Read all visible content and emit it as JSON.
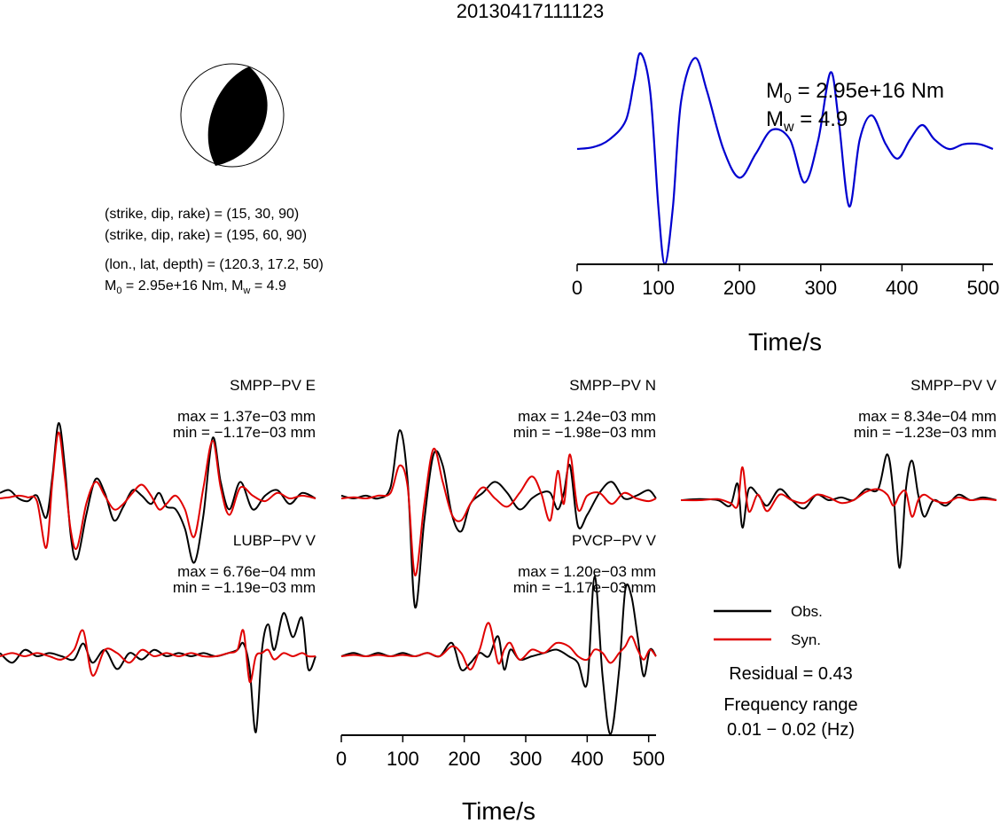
{
  "page": {
    "title": "20130417111123",
    "info_lines": {
      "plane1": "(strike, dip, rake) = (15, 30, 90)",
      "plane2": "(strike, dip, rake) = (195, 60, 90)",
      "location": "(lon., lat, depth) = (120.3, 17.2, 50)",
      "moment_prefix": "M",
      "moment_sub": "0",
      "moment_value": " = 2.95e+16 Nm, M",
      "mw_sub": "w",
      "mw_value": " = 4.9"
    },
    "stf_labels": {
      "m0_prefix": "M",
      "m0_sub": "0",
      "m0_value": " = 2.95e+16 Nm",
      "mw_prefix": "M",
      "mw_sub": "w",
      "mw_value": " = 4.9"
    },
    "legend": {
      "obs_label": "Obs.",
      "syn_label": "Syn.",
      "obs_color": "#000000",
      "syn_color": "#e00000"
    },
    "residual_text": "Residual = 0.43",
    "frequency_title": "Frequency range",
    "frequency_value": "0.01 − 0.02 (Hz)"
  },
  "chart_data": [
    {
      "type": "beachball",
      "strike": 15,
      "dip": 30,
      "rake": 90
    },
    {
      "type": "line",
      "name": "source-time-function",
      "color": "#0000d0",
      "xlabel": "Time/s",
      "xlim": [
        0,
        512
      ],
      "xticks": [
        0,
        100,
        200,
        300,
        400,
        500
      ],
      "x": [
        0,
        20,
        40,
        60,
        70,
        78,
        90,
        100,
        108,
        118,
        128,
        145,
        160,
        180,
        200,
        220,
        240,
        262,
        280,
        297,
        312,
        322,
        335,
        348,
        363,
        380,
        395,
        410,
        425,
        440,
        458,
        476,
        495,
        512
      ],
      "y": [
        0.0,
        0.02,
        0.1,
        0.3,
        0.7,
        1.0,
        0.6,
        -0.6,
        -1.2,
        -0.6,
        0.5,
        0.95,
        0.6,
        0.0,
        -0.3,
        -0.05,
        0.2,
        0.1,
        -0.35,
        0.1,
        0.8,
        0.3,
        -0.6,
        0.1,
        0.35,
        0.05,
        -0.1,
        0.1,
        0.25,
        0.1,
        0.0,
        0.05,
        0.05,
        0.0
      ]
    },
    {
      "type": "line",
      "name": "SMPP-PV E",
      "label": "SMPP−PV E",
      "max_text": "max = 1.37e−03 mm",
      "min_text": "min = −1.17e−03 mm",
      "xlim": [
        0,
        512
      ],
      "series": [
        {
          "name": "Obs.",
          "x": [
            0,
            15,
            30,
            45,
            60,
            75,
            85,
            95,
            105,
            115,
            125,
            140,
            155,
            170,
            185,
            200,
            215,
            230,
            245,
            258,
            270,
            285,
            300,
            315,
            330,
            345,
            358,
            372,
            390,
            410,
            430,
            450,
            470,
            490,
            512
          ],
          "y": [
            0.1,
            0.15,
            0.0,
            -0.05,
            0.05,
            -0.35,
            0.4,
            1.37,
            0.6,
            -0.7,
            -1.1,
            -0.3,
            0.35,
            0.1,
            -0.4,
            -0.15,
            0.15,
            0.05,
            -0.1,
            0.1,
            -0.15,
            -0.2,
            -0.55,
            -1.17,
            -0.3,
            1.1,
            0.3,
            -0.2,
            0.3,
            -0.2,
            0.05,
            0.15,
            -0.1,
            0.1,
            0.0
          ]
        },
        {
          "name": "Syn.",
          "x": [
            0,
            15,
            30,
            45,
            60,
            75,
            85,
            95,
            105,
            115,
            125,
            140,
            155,
            170,
            185,
            200,
            215,
            230,
            245,
            258,
            270,
            285,
            300,
            315,
            330,
            345,
            358,
            372,
            390,
            410,
            430,
            450,
            470,
            490,
            512
          ],
          "y": [
            0.0,
            0.02,
            0.05,
            0.02,
            -0.05,
            -0.9,
            0.3,
            1.2,
            0.4,
            -0.6,
            -0.9,
            -0.1,
            0.3,
            0.05,
            -0.2,
            -0.1,
            0.1,
            0.25,
            0.05,
            -0.2,
            -0.1,
            0.05,
            -0.2,
            -0.7,
            0.2,
            1.05,
            0.2,
            -0.3,
            0.2,
            0.05,
            -0.05,
            0.1,
            0.0,
            0.05,
            0.0
          ]
        }
      ]
    },
    {
      "type": "line",
      "name": "SMPP-PV N",
      "label": "SMPP−PV N",
      "max_text": "max = 1.24e−03 mm",
      "min_text": "min = −1.98e−03 mm",
      "xlim": [
        0,
        512
      ],
      "series": [
        {
          "name": "Obs.",
          "x": [
            0,
            20,
            40,
            60,
            80,
            95,
            108,
            120,
            135,
            150,
            165,
            180,
            195,
            210,
            230,
            250,
            270,
            290,
            310,
            325,
            340,
            352,
            362,
            372,
            385,
            400,
            420,
            440,
            460,
            480,
            500,
            512
          ],
          "y": [
            0.05,
            0.0,
            0.05,
            0.0,
            0.2,
            1.24,
            0.3,
            -1.98,
            -0.4,
            0.8,
            0.6,
            -0.3,
            -0.6,
            -0.1,
            0.1,
            0.3,
            0.1,
            -0.2,
            0.0,
            0.1,
            0.1,
            -0.2,
            0.1,
            0.6,
            -0.5,
            -0.3,
            0.1,
            0.3,
            0.0,
            0.05,
            0.15,
            0.0
          ]
        },
        {
          "name": "Syn.",
          "x": [
            0,
            20,
            40,
            60,
            80,
            95,
            108,
            120,
            135,
            150,
            165,
            180,
            195,
            210,
            230,
            250,
            270,
            290,
            310,
            325,
            340,
            352,
            362,
            372,
            385,
            400,
            420,
            440,
            460,
            480,
            500,
            512
          ],
          "y": [
            0.0,
            0.02,
            0.0,
            0.05,
            0.1,
            0.6,
            0.2,
            -1.4,
            -0.1,
            0.9,
            0.3,
            -0.3,
            -0.4,
            -0.1,
            0.2,
            0.0,
            -0.15,
            0.1,
            0.4,
            0.1,
            -0.4,
            0.5,
            -0.1,
            0.8,
            -0.2,
            0.05,
            0.1,
            -0.1,
            0.1,
            0.0,
            -0.05,
            0.0
          ]
        }
      ]
    },
    {
      "type": "line",
      "name": "SMPP-PV V",
      "label": "SMPP−PV V",
      "max_text": "max = 8.34e−04 mm",
      "min_text": "min = −1.23e−03 mm",
      "xlim": [
        0,
        512
      ],
      "series": [
        {
          "name": "Obs.",
          "x": [
            0,
            30,
            60,
            80,
            92,
            100,
            110,
            125,
            140,
            160,
            180,
            200,
            220,
            240,
            260,
            280,
            300,
            320,
            335,
            345,
            355,
            365,
            375,
            385,
            395,
            410,
            430,
            450,
            470,
            490,
            512
          ],
          "y": [
            0.0,
            0.02,
            0.0,
            -0.1,
            0.3,
            -0.5,
            0.2,
            0.1,
            -0.1,
            0.2,
            0.0,
            -0.15,
            0.1,
            0.0,
            0.05,
            0.0,
            0.2,
            0.2,
            0.834,
            0.1,
            -1.23,
            0.2,
            0.72,
            0.1,
            -0.3,
            0.0,
            -0.1,
            0.1,
            0.0,
            0.05,
            0.0
          ]
        },
        {
          "name": "Syn.",
          "x": [
            0,
            30,
            60,
            80,
            92,
            100,
            110,
            125,
            140,
            160,
            180,
            200,
            220,
            240,
            260,
            280,
            300,
            320,
            335,
            345,
            355,
            365,
            375,
            385,
            395,
            410,
            430,
            450,
            470,
            490,
            512
          ],
          "y": [
            0.0,
            0.0,
            0.02,
            -0.05,
            -0.1,
            0.6,
            -0.2,
            0.1,
            -0.2,
            0.1,
            0.0,
            -0.05,
            0.1,
            0.05,
            -0.05,
            0.0,
            0.15,
            0.2,
            0.1,
            -0.1,
            0.1,
            0.15,
            -0.3,
            0.0,
            0.1,
            0.0,
            -0.05,
            0.05,
            0.0,
            0.02,
            0.0
          ]
        }
      ]
    },
    {
      "type": "line",
      "name": "LUBP-PV V",
      "label": "LUBP−PV V",
      "max_text": "max = 6.76e−04 mm",
      "min_text": "min = −1.19e−03 mm",
      "xlim": [
        0,
        512
      ],
      "series": [
        {
          "name": "Obs.",
          "x": [
            0,
            20,
            40,
            60,
            80,
            100,
            120,
            135,
            150,
            170,
            190,
            210,
            230,
            250,
            270,
            290,
            310,
            330,
            350,
            370,
            385,
            395,
            405,
            415,
            425,
            435,
            445,
            460,
            475,
            490,
            500,
            512
          ],
          "y": [
            0.05,
            -0.1,
            0.1,
            0.0,
            0.05,
            0.0,
            -0.05,
            0.2,
            -0.1,
            0.1,
            -0.2,
            0.05,
            -0.05,
            0.1,
            0.0,
            0.05,
            0.0,
            0.05,
            0.0,
            0.05,
            0.1,
            0.2,
            -0.2,
            -1.19,
            0.1,
            0.5,
            0.1,
            0.676,
            0.3,
            0.6,
            -0.2,
            0.0
          ]
        },
        {
          "name": "Syn.",
          "x": [
            0,
            20,
            40,
            60,
            80,
            100,
            120,
            135,
            150,
            170,
            190,
            210,
            230,
            250,
            270,
            290,
            310,
            330,
            350,
            370,
            385,
            395,
            405,
            415,
            425,
            435,
            445,
            460,
            475,
            490,
            500,
            512
          ],
          "y": [
            0.0,
            0.05,
            0.0,
            0.05,
            0.0,
            -0.05,
            0.1,
            0.4,
            -0.3,
            0.1,
            0.05,
            -0.1,
            0.1,
            0.0,
            0.05,
            0.0,
            0.05,
            0.0,
            0.0,
            0.05,
            0.1,
            0.4,
            -0.4,
            0.0,
            0.05,
            0.1,
            -0.05,
            0.05,
            0.0,
            0.05,
            0.0,
            0.0
          ]
        }
      ]
    },
    {
      "type": "line",
      "name": "PVCP-PV V",
      "label": "PVCP−PV V",
      "max_text": "max = 1.20e−03 mm",
      "min_text": "min = −1.17e−03 mm",
      "xlabel": "Time/s",
      "xlim": [
        0,
        512
      ],
      "xticks": [
        0,
        100,
        200,
        300,
        400,
        500
      ],
      "series": [
        {
          "name": "Obs.",
          "x": [
            0,
            20,
            40,
            60,
            80,
            100,
            120,
            140,
            160,
            180,
            195,
            210,
            225,
            240,
            255,
            265,
            275,
            290,
            310,
            330,
            350,
            370,
            385,
            400,
            412,
            425,
            438,
            452,
            462,
            472,
            482,
            492,
            502,
            512
          ],
          "y": [
            0.0,
            0.05,
            0.0,
            0.05,
            0.0,
            0.05,
            0.0,
            0.05,
            0.0,
            0.2,
            -0.2,
            -0.1,
            0.05,
            0.0,
            0.3,
            -0.2,
            0.1,
            -0.05,
            0.0,
            0.05,
            0.1,
            0.0,
            -0.1,
            -0.4,
            1.2,
            -0.3,
            -1.17,
            -0.2,
            1.0,
            0.9,
            0.3,
            -0.3,
            0.1,
            0.0
          ]
        },
        {
          "name": "Syn.",
          "x": [
            0,
            20,
            40,
            60,
            80,
            100,
            120,
            140,
            160,
            180,
            195,
            210,
            225,
            240,
            255,
            265,
            275,
            290,
            310,
            330,
            350,
            370,
            385,
            400,
            412,
            425,
            438,
            452,
            462,
            472,
            482,
            492,
            502,
            512
          ],
          "y": [
            0.0,
            0.02,
            0.0,
            0.02,
            0.0,
            0.02,
            0.0,
            0.05,
            0.0,
            0.15,
            0.05,
            -0.2,
            0.1,
            0.5,
            -0.1,
            0.1,
            0.2,
            -0.05,
            0.1,
            0.05,
            0.2,
            0.15,
            0.0,
            -0.05,
            0.1,
            0.05,
            -0.1,
            0.05,
            0.15,
            0.3,
            0.1,
            -0.05,
            0.1,
            0.0
          ]
        }
      ]
    }
  ]
}
